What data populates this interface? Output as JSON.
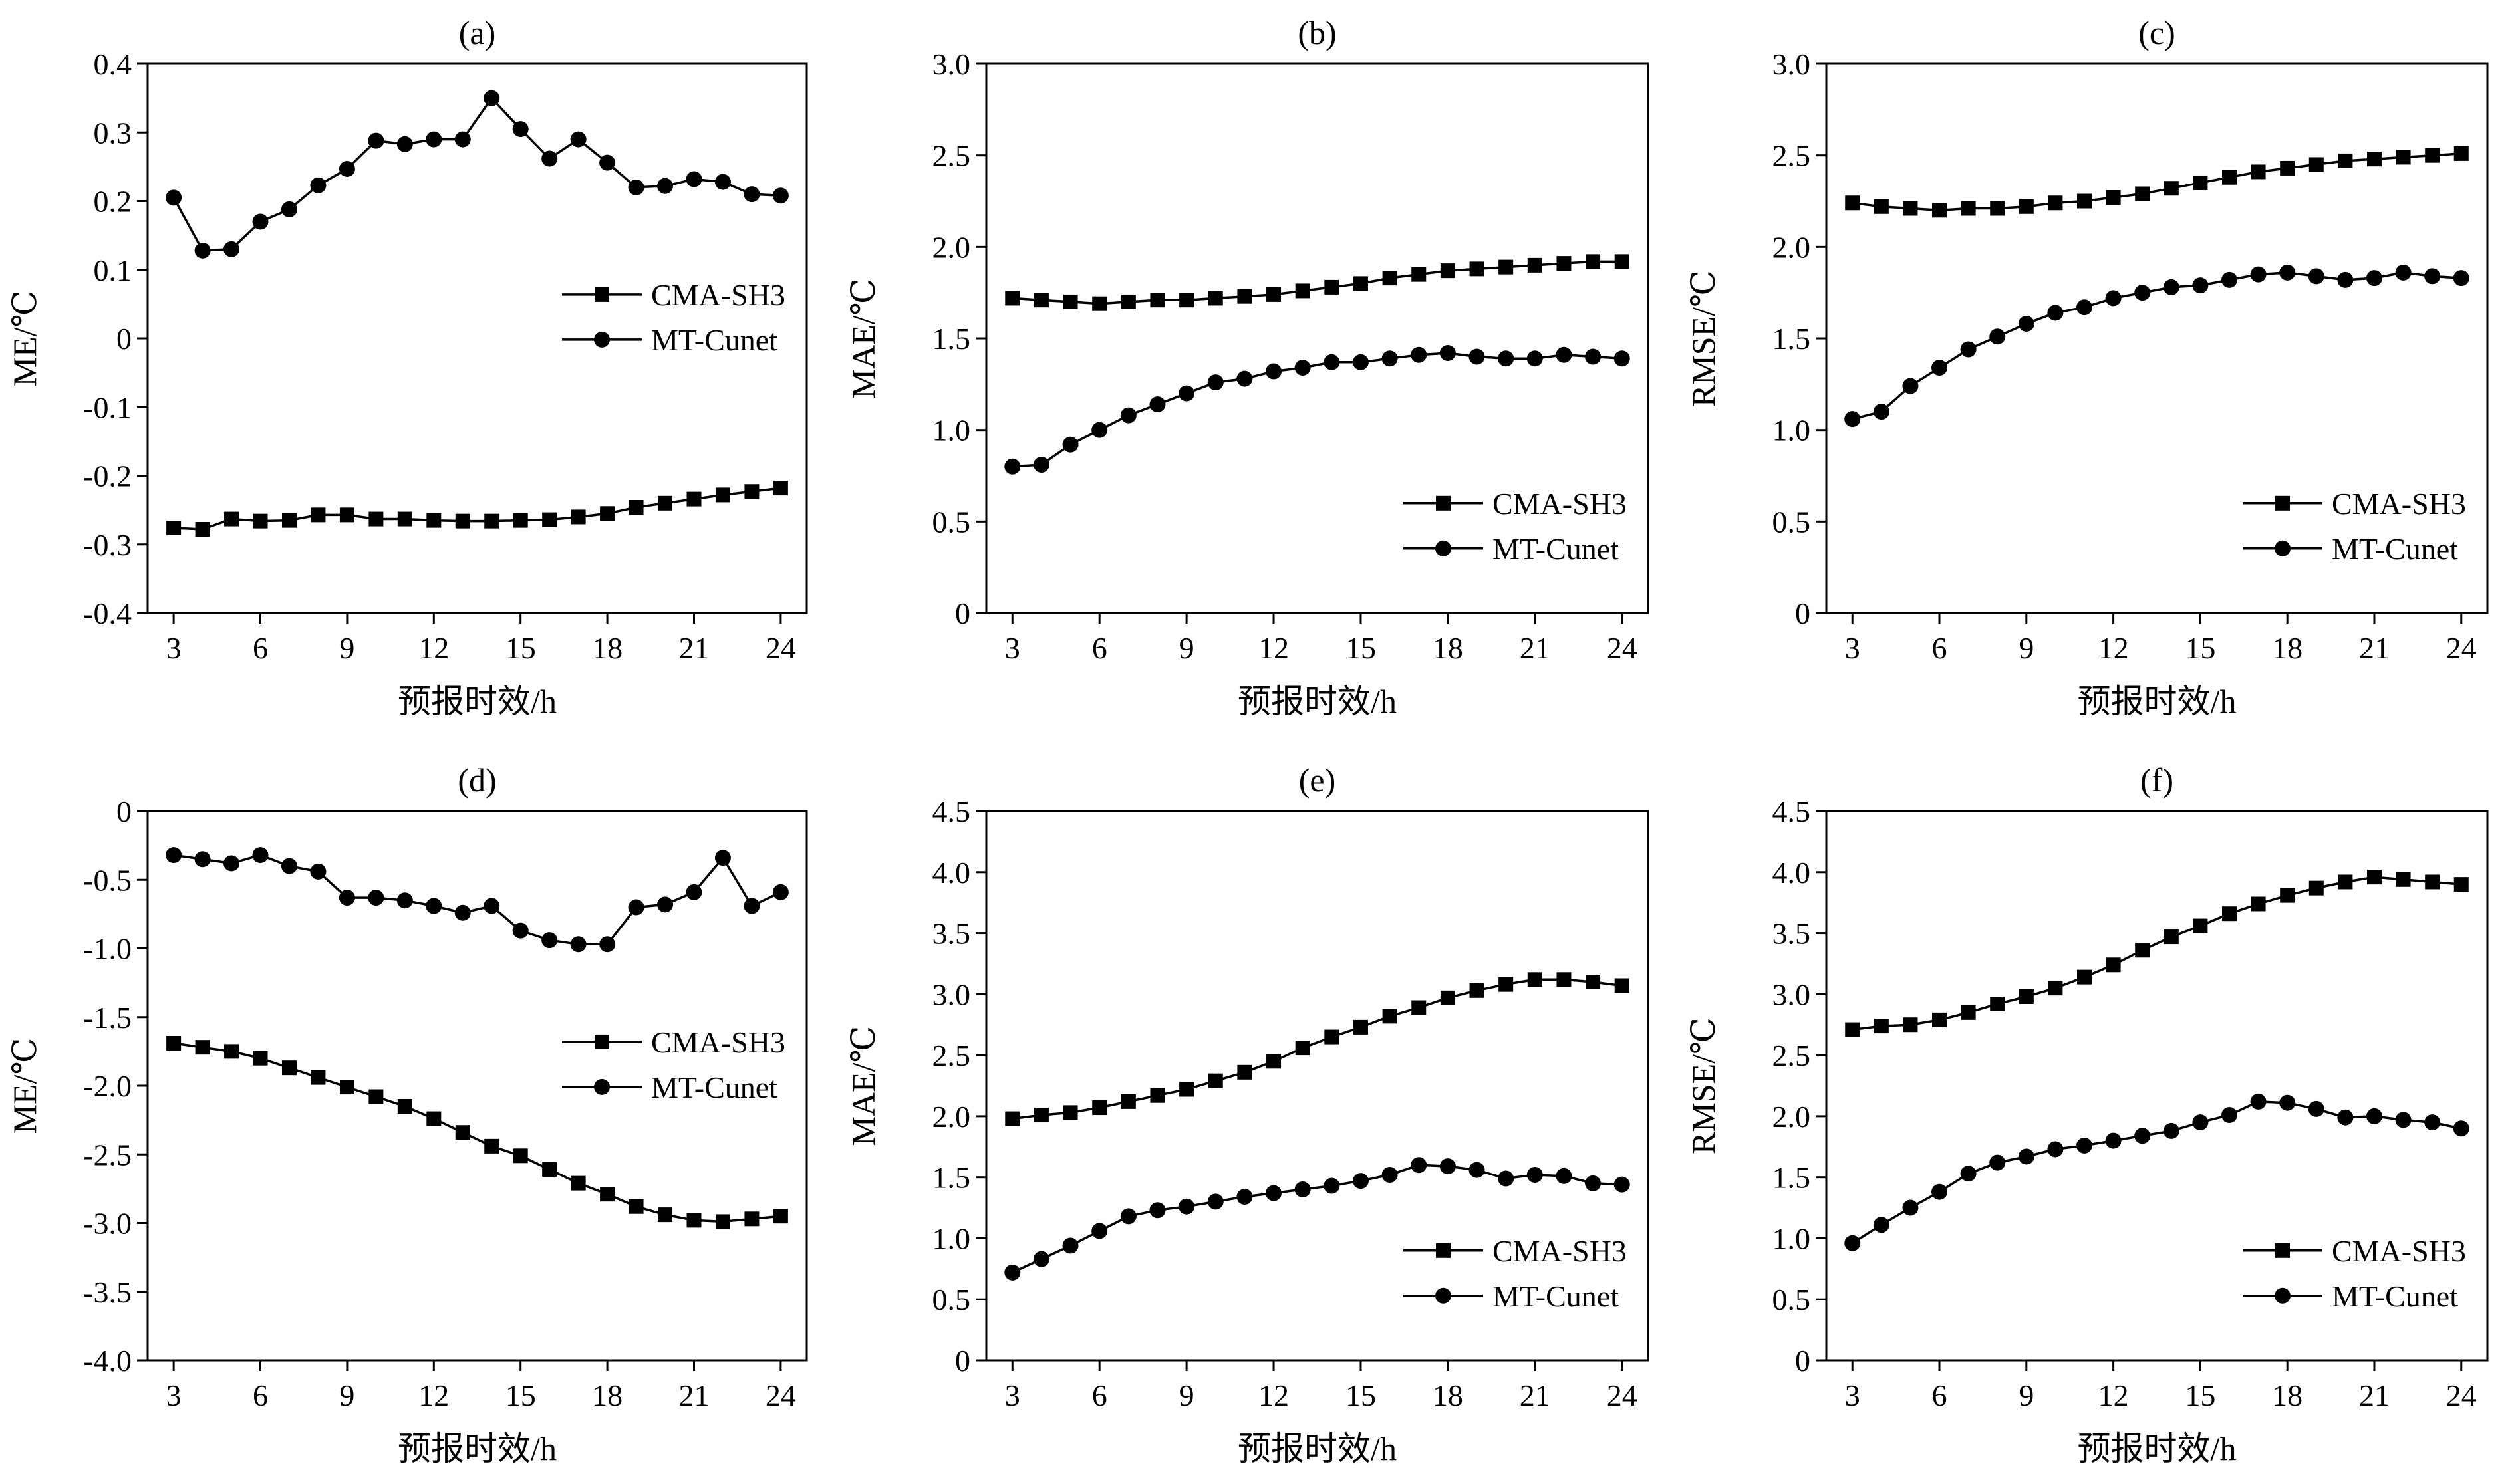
{
  "colors": {
    "line": "#000000",
    "background": "#ffffff"
  },
  "chart_data": [
    {
      "panel": "(a)",
      "type": "line",
      "xlabel": "预报时效/h",
      "ylabel": "ME/℃",
      "xlim": [
        2.1,
        24.9
      ],
      "ylim": [
        -0.4,
        0.4
      ],
      "xticks": [
        3,
        6,
        9,
        12,
        15,
        18,
        21,
        24
      ],
      "xtick_labels": [
        "3",
        "6",
        "9",
        "12",
        "15",
        "18",
        "21",
        "24"
      ],
      "yticks": [
        -0.4,
        -0.3,
        -0.2,
        -0.1,
        0,
        0.1,
        0.2,
        0.3,
        0.4
      ],
      "ytick_labels": [
        "-0.4",
        "-0.3",
        "-0.2",
        "-0.1",
        "0",
        "0.1",
        "0.2",
        "0.3",
        "0.4"
      ],
      "legend_position": "middle-right",
      "x": [
        3,
        4,
        5,
        6,
        7,
        8,
        9,
        10,
        11,
        12,
        13,
        14,
        15,
        16,
        17,
        18,
        19,
        20,
        21,
        22,
        23,
        24
      ],
      "series": [
        {
          "name": "CMA-SH3",
          "marker": "square",
          "values": [
            -0.276,
            -0.278,
            -0.263,
            -0.266,
            -0.265,
            -0.257,
            -0.257,
            -0.263,
            -0.263,
            -0.265,
            -0.266,
            -0.266,
            -0.265,
            -0.264,
            -0.26,
            -0.255,
            -0.246,
            -0.24,
            -0.234,
            -0.228,
            -0.223,
            -0.218
          ]
        },
        {
          "name": "MT-Cunet",
          "marker": "circle",
          "values": [
            0.205,
            0.128,
            0.13,
            0.17,
            0.188,
            0.223,
            0.247,
            0.288,
            0.283,
            0.29,
            0.29,
            0.35,
            0.305,
            0.262,
            0.29,
            0.256,
            0.22,
            0.222,
            0.232,
            0.228,
            0.21,
            0.208
          ]
        }
      ]
    },
    {
      "panel": "(b)",
      "type": "line",
      "xlabel": "预报时效/h",
      "ylabel": "MAE/℃",
      "xlim": [
        2.1,
        24.9
      ],
      "ylim": [
        0,
        3.0
      ],
      "xticks": [
        3,
        6,
        9,
        12,
        15,
        18,
        21,
        24
      ],
      "xtick_labels": [
        "3",
        "6",
        "9",
        "12",
        "15",
        "18",
        "21",
        "24"
      ],
      "yticks": [
        0,
        0.5,
        1.0,
        1.5,
        2.0,
        2.5,
        3.0
      ],
      "ytick_labels": [
        "0",
        "0.5",
        "1.0",
        "1.5",
        "2.0",
        "2.5",
        "3.0"
      ],
      "legend_position": "lower-right",
      "x": [
        3,
        4,
        5,
        6,
        7,
        8,
        9,
        10,
        11,
        12,
        13,
        14,
        15,
        16,
        17,
        18,
        19,
        20,
        21,
        22,
        23,
        24
      ],
      "series": [
        {
          "name": "CMA-SH3",
          "marker": "square",
          "values": [
            1.72,
            1.71,
            1.7,
            1.69,
            1.7,
            1.71,
            1.71,
            1.72,
            1.73,
            1.74,
            1.76,
            1.78,
            1.8,
            1.83,
            1.85,
            1.87,
            1.88,
            1.89,
            1.9,
            1.91,
            1.92,
            1.92
          ]
        },
        {
          "name": "MT-Cunet",
          "marker": "circle",
          "values": [
            0.8,
            0.81,
            0.92,
            1.0,
            1.08,
            1.14,
            1.2,
            1.26,
            1.28,
            1.32,
            1.34,
            1.37,
            1.37,
            1.39,
            1.41,
            1.42,
            1.4,
            1.39,
            1.39,
            1.41,
            1.4,
            1.39
          ]
        }
      ]
    },
    {
      "panel": "(c)",
      "type": "line",
      "xlabel": "预报时效/h",
      "ylabel": "RMSE/℃",
      "xlim": [
        2.1,
        24.9
      ],
      "ylim": [
        0,
        3.0
      ],
      "xticks": [
        3,
        6,
        9,
        12,
        15,
        18,
        21,
        24
      ],
      "xtick_labels": [
        "3",
        "6",
        "9",
        "12",
        "15",
        "18",
        "21",
        "24"
      ],
      "yticks": [
        0,
        0.5,
        1.0,
        1.5,
        2.0,
        2.5,
        3.0
      ],
      "ytick_labels": [
        "0",
        "0.5",
        "1.0",
        "1.5",
        "2.0",
        "2.5",
        "3.0"
      ],
      "legend_position": "lower-right",
      "x": [
        3,
        4,
        5,
        6,
        7,
        8,
        9,
        10,
        11,
        12,
        13,
        14,
        15,
        16,
        17,
        18,
        19,
        20,
        21,
        22,
        23,
        24
      ],
      "series": [
        {
          "name": "CMA-SH3",
          "marker": "square",
          "values": [
            2.24,
            2.22,
            2.21,
            2.2,
            2.21,
            2.21,
            2.22,
            2.24,
            2.25,
            2.27,
            2.29,
            2.32,
            2.35,
            2.38,
            2.41,
            2.43,
            2.45,
            2.47,
            2.48,
            2.49,
            2.5,
            2.51
          ]
        },
        {
          "name": "MT-Cunet",
          "marker": "circle",
          "values": [
            1.06,
            1.1,
            1.24,
            1.34,
            1.44,
            1.51,
            1.58,
            1.64,
            1.67,
            1.72,
            1.75,
            1.78,
            1.79,
            1.82,
            1.85,
            1.86,
            1.84,
            1.82,
            1.83,
            1.86,
            1.84,
            1.83
          ]
        }
      ]
    },
    {
      "panel": "(d)",
      "type": "line",
      "xlabel": "预报时效/h",
      "ylabel": "ME/℃",
      "xlim": [
        2.1,
        24.9
      ],
      "ylim": [
        -4.0,
        0
      ],
      "xticks": [
        3,
        6,
        9,
        12,
        15,
        18,
        21,
        24
      ],
      "xtick_labels": [
        "3",
        "6",
        "9",
        "12",
        "15",
        "18",
        "21",
        "24"
      ],
      "yticks": [
        -4.0,
        -3.5,
        -3.0,
        -2.5,
        -2.0,
        -1.5,
        -1.0,
        -0.5,
        0
      ],
      "ytick_labels": [
        "-4.0",
        "-3.5",
        "-3.0",
        "-2.5",
        "-2.0",
        "-1.5",
        "-1.0",
        "-0.5",
        "0"
      ],
      "legend_position": "middle-right",
      "x": [
        3,
        4,
        5,
        6,
        7,
        8,
        9,
        10,
        11,
        12,
        13,
        14,
        15,
        16,
        17,
        18,
        19,
        20,
        21,
        22,
        23,
        24
      ],
      "series": [
        {
          "name": "CMA-SH3",
          "marker": "square",
          "values": [
            -1.69,
            -1.72,
            -1.75,
            -1.8,
            -1.87,
            -1.94,
            -2.01,
            -2.08,
            -2.15,
            -2.24,
            -2.34,
            -2.44,
            -2.51,
            -2.61,
            -2.71,
            -2.79,
            -2.88,
            -2.94,
            -2.98,
            -2.99,
            -2.97,
            -2.95
          ]
        },
        {
          "name": "MT-Cunet",
          "marker": "circle",
          "values": [
            -0.32,
            -0.35,
            -0.38,
            -0.32,
            -0.4,
            -0.44,
            -0.63,
            -0.63,
            -0.65,
            -0.69,
            -0.74,
            -0.69,
            -0.87,
            -0.94,
            -0.97,
            -0.97,
            -0.7,
            -0.68,
            -0.59,
            -0.34,
            -0.69,
            -0.59
          ]
        }
      ]
    },
    {
      "panel": "(e)",
      "type": "line",
      "xlabel": "预报时效/h",
      "ylabel": "MAE/℃",
      "xlim": [
        2.1,
        24.9
      ],
      "ylim": [
        0,
        4.5
      ],
      "xticks": [
        3,
        6,
        9,
        12,
        15,
        18,
        21,
        24
      ],
      "xtick_labels": [
        "3",
        "6",
        "9",
        "12",
        "15",
        "18",
        "21",
        "24"
      ],
      "yticks": [
        0,
        0.5,
        1.0,
        1.5,
        2.0,
        2.5,
        3.0,
        3.5,
        4.0,
        4.5
      ],
      "ytick_labels": [
        "0",
        "0.5",
        "1.0",
        "1.5",
        "2.0",
        "2.5",
        "3.0",
        "3.5",
        "4.0",
        "4.5"
      ],
      "legend_position": "lower-right",
      "x": [
        3,
        4,
        5,
        6,
        7,
        8,
        9,
        10,
        11,
        12,
        13,
        14,
        15,
        16,
        17,
        18,
        19,
        20,
        21,
        22,
        23,
        24
      ],
      "series": [
        {
          "name": "CMA-SH3",
          "marker": "square",
          "values": [
            1.98,
            2.01,
            2.03,
            2.07,
            2.12,
            2.17,
            2.22,
            2.29,
            2.36,
            2.45,
            2.56,
            2.65,
            2.73,
            2.82,
            2.89,
            2.97,
            3.03,
            3.08,
            3.12,
            3.12,
            3.1,
            3.07
          ]
        },
        {
          "name": "MT-Cunet",
          "marker": "circle",
          "values": [
            0.72,
            0.83,
            0.94,
            1.06,
            1.18,
            1.23,
            1.26,
            1.3,
            1.34,
            1.37,
            1.4,
            1.43,
            1.47,
            1.52,
            1.6,
            1.59,
            1.56,
            1.49,
            1.52,
            1.51,
            1.45,
            1.44
          ]
        }
      ]
    },
    {
      "panel": "(f)",
      "type": "line",
      "xlabel": "预报时效/h",
      "ylabel": "RMSE/℃",
      "xlim": [
        2.1,
        24.9
      ],
      "ylim": [
        0,
        4.5
      ],
      "xticks": [
        3,
        6,
        9,
        12,
        15,
        18,
        21,
        24
      ],
      "xtick_labels": [
        "3",
        "6",
        "9",
        "12",
        "15",
        "18",
        "21",
        "24"
      ],
      "yticks": [
        0,
        0.5,
        1.0,
        1.5,
        2.0,
        2.5,
        3.0,
        3.5,
        4.0,
        4.5
      ],
      "ytick_labels": [
        "0",
        "0.5",
        "1.0",
        "1.5",
        "2.0",
        "2.5",
        "3.0",
        "3.5",
        "4.0",
        "4.5"
      ],
      "legend_position": "lower-right",
      "x": [
        3,
        4,
        5,
        6,
        7,
        8,
        9,
        10,
        11,
        12,
        13,
        14,
        15,
        16,
        17,
        18,
        19,
        20,
        21,
        22,
        23,
        24
      ],
      "series": [
        {
          "name": "CMA-SH3",
          "marker": "square",
          "values": [
            2.71,
            2.74,
            2.75,
            2.79,
            2.85,
            2.92,
            2.98,
            3.05,
            3.14,
            3.24,
            3.36,
            3.47,
            3.56,
            3.66,
            3.74,
            3.81,
            3.87,
            3.92,
            3.96,
            3.94,
            3.92,
            3.9
          ]
        },
        {
          "name": "MT-Cunet",
          "marker": "circle",
          "values": [
            0.96,
            1.11,
            1.25,
            1.38,
            1.53,
            1.62,
            1.67,
            1.73,
            1.76,
            1.8,
            1.84,
            1.88,
            1.95,
            2.01,
            2.12,
            2.11,
            2.06,
            1.99,
            2.0,
            1.97,
            1.95,
            1.9
          ]
        }
      ]
    }
  ]
}
